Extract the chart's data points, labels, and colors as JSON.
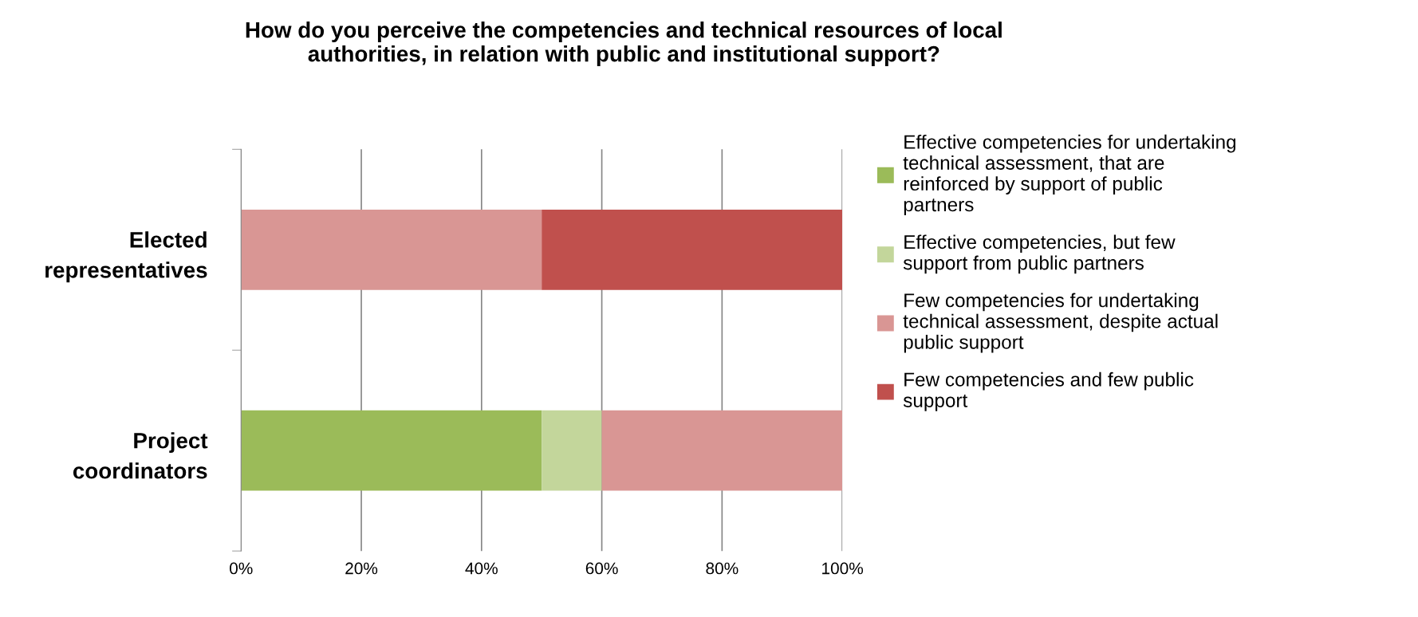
{
  "chart_data": {
    "type": "bar",
    "orientation": "horizontal",
    "stacked": true,
    "title": "How do you perceive the competencies and technical resources of local authorities, in relation with public and institutional support?",
    "categories": [
      "Elected representatives",
      "Project coordinators"
    ],
    "series": [
      {
        "name": "Effective competencies for undertaking technical assessment, that are reinforced by support of public partners",
        "color": "#9bbb59",
        "values": [
          0,
          50
        ]
      },
      {
        "name": "Effective competencies, but few support from public partners",
        "color": "#c3d69b",
        "values": [
          0,
          10
        ]
      },
      {
        "name": "Few competencies for undertaking technical assessment, despite actual public support",
        "color": "#d99694",
        "values": [
          50,
          40
        ]
      },
      {
        "name": "Few competencies and few public support",
        "color": "#c0504d",
        "values": [
          50,
          0
        ]
      }
    ],
    "xlim": [
      0,
      100
    ],
    "xticks": [
      {
        "value": 0,
        "label": "0%"
      },
      {
        "value": 20,
        "label": "20%"
      },
      {
        "value": 40,
        "label": "40%"
      },
      {
        "value": 60,
        "label": "60%"
      },
      {
        "value": 80,
        "label": "80%"
      },
      {
        "value": 100,
        "label": "100%"
      }
    ],
    "grid": "x",
    "legend": "right"
  }
}
